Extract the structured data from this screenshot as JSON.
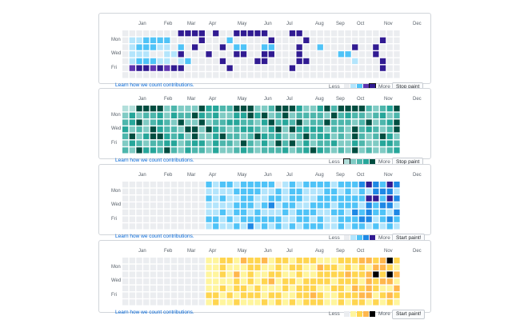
{
  "months": [
    "Jan",
    "Feb",
    "Mar",
    "Apr",
    "May",
    "Jun",
    "Jul",
    "Aug",
    "Sep",
    "Oct",
    "Nov",
    "Dec"
  ],
  "days": [
    "Mon",
    "Wed",
    "Fri"
  ],
  "link_text": "Learn how we count contributions.",
  "less_label": "Less",
  "more_label": "More",
  "panels": [
    {
      "theme": "purple-blue",
      "button_label": "Stop paint",
      "palette": [
        "#ebedf0",
        "#b3e5fc",
        "#4fc3f7",
        "#5e35b1",
        "#311b92"
      ],
      "selected_level": 4,
      "pattern": [
        "0000000044440400444440004400000000000000",
        "0112222000040002000004000040000000000400",
        "0122211020400040220022000400200004004000",
        "0111001140004000440044000400000220004000",
        "0122211012000040000440000440000001000400",
        "0344343440000004000000004000000000000400",
        "0000000000000000000000000000000000000000"
      ]
    },
    {
      "theme": "teal",
      "button_label": "Stop paint",
      "palette": [
        "#b2dfdb",
        "#80cbc4",
        "#4db6ac",
        "#26a69a",
        "#004d40"
      ],
      "selected_level": 0,
      "pattern": [
        "0044441211143322444112444311342444421234",
        "1312231322432311334341241222214232212312",
        "2341232141141223322134232412242221241234",
        "3121432214414321233213414333312214232124",
        "2413443231411342212432311242331214212431",
        "1321223312331322142131424131223113211332",
        "2143324213221311232122231234321214121123"
      ]
    },
    {
      "theme": "blue",
      "button_label": "Start paint!",
      "palette": [
        "#ebedf0",
        "#b3e5fc",
        "#4fc3f7",
        "#1e88e5",
        "#311b92"
      ],
      "selected_level": null,
      "pattern": [
        "0000000000002122122222012122221222343243",
        "0000000000001111222211212211122121213331",
        "0000000000002121122112212211222222244243",
        "0000000000001111222123122112221222132331",
        "0000000000001121221211121222112213232213",
        "0000000000002212122222211221211222331232",
        "0000000000001211213121212122211212212121"
      ]
    },
    {
      "theme": "yellow",
      "button_label": "Start paint!",
      "palette": [
        "#ebedf0",
        "#fff59d",
        "#ffd54f",
        "#ffb74d",
        "#000000"
      ],
      "selected_level": null,
      "pattern": [
        "0000000000001122132231221222111222332342",
        "0000000000001121112211212211322121213321",
        "0000000000001121312112211211222232234243",
        "0000000000001111212123122122221222132331",
        "0000000000001121221211121222112213232113",
        "0000000000002212122212211223211222331232",
        "0000000000001211211121212122211212212121"
      ]
    }
  ]
}
